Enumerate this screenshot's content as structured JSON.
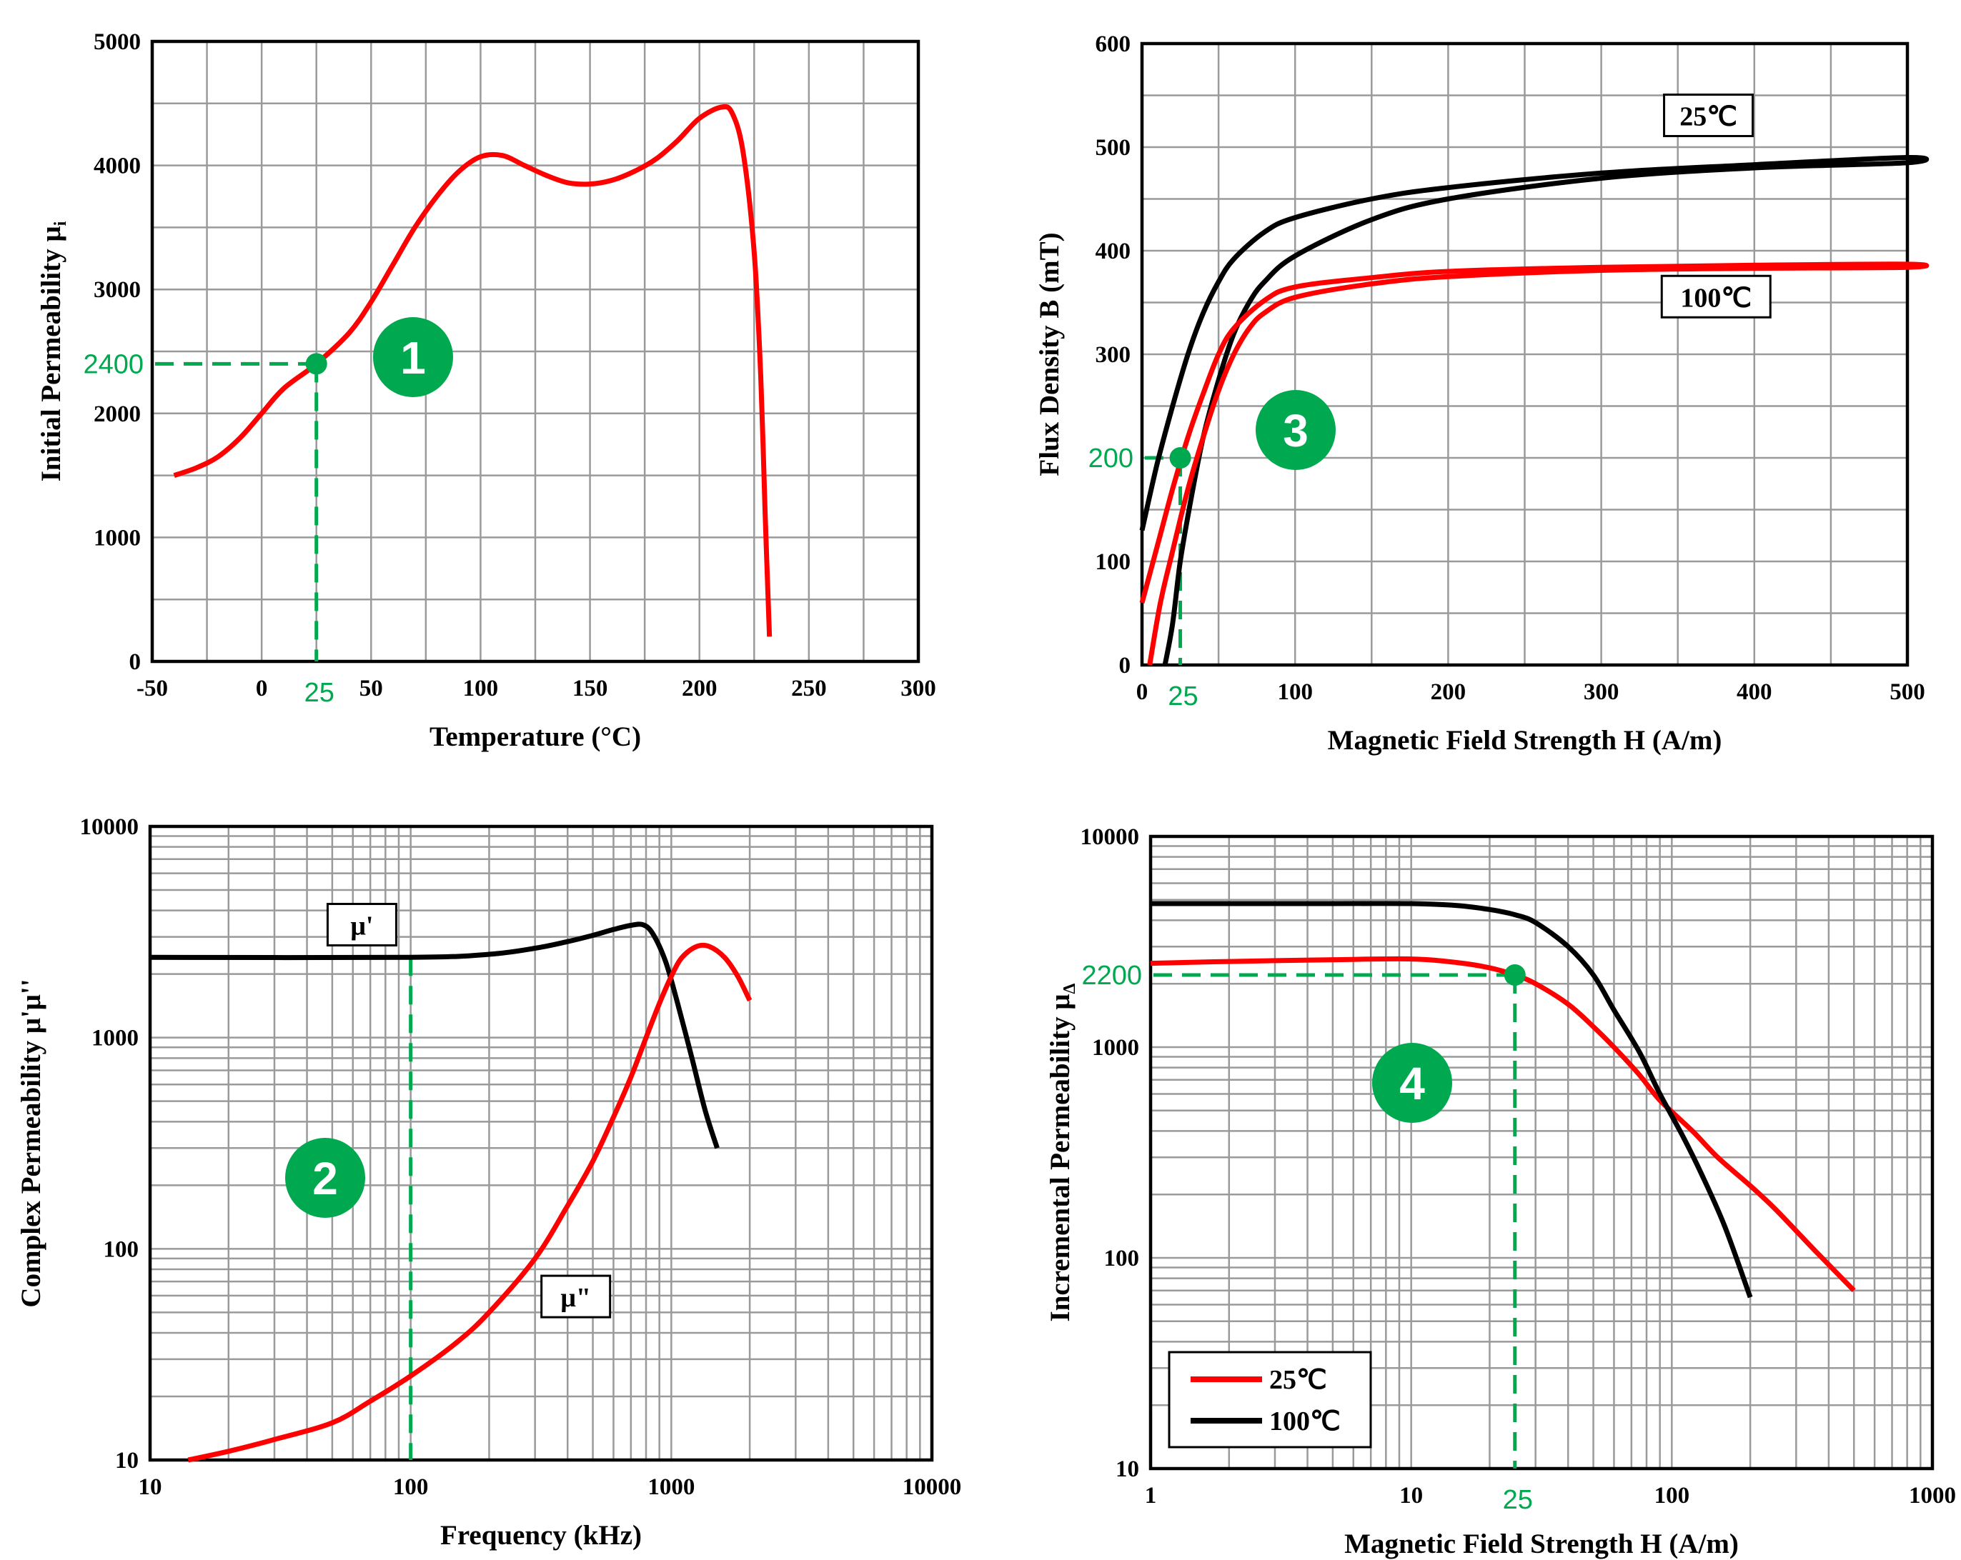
{
  "colors": {
    "annotation": "#00A84F",
    "red_curve": "#FF0000",
    "black_curve": "#000000",
    "grid": "#9a9a9a"
  },
  "chart_data": [
    {
      "type": "line",
      "marker": "1",
      "xlabel": "Temperature (°C)",
      "ylabel": "Initial Permeability μ",
      "ylabel_sub": "i",
      "xscale": "linear",
      "yscale": "linear",
      "xlim": [
        -50,
        300
      ],
      "ylim": [
        0,
        5000
      ],
      "xticks": [
        -50,
        0,
        50,
        100,
        150,
        200,
        250,
        300
      ],
      "yticks": [
        0,
        1000,
        2000,
        3000,
        4000,
        5000
      ],
      "xgrid_step": 25,
      "ygrid_step": 500,
      "grid": true,
      "series": [
        {
          "color": "#FF0000",
          "points": [
            [
              -40,
              1500
            ],
            [
              -30,
              1560
            ],
            [
              -20,
              1650
            ],
            [
              -10,
              1800
            ],
            [
              0,
              2000
            ],
            [
              10,
              2200
            ],
            [
              25,
              2400
            ],
            [
              40,
              2650
            ],
            [
              50,
              2900
            ],
            [
              60,
              3200
            ],
            [
              70,
              3500
            ],
            [
              80,
              3750
            ],
            [
              90,
              3950
            ],
            [
              100,
              4070
            ],
            [
              110,
              4080
            ],
            [
              120,
              4000
            ],
            [
              130,
              3920
            ],
            [
              140,
              3860
            ],
            [
              150,
              3850
            ],
            [
              160,
              3880
            ],
            [
              170,
              3950
            ],
            [
              180,
              4050
            ],
            [
              190,
              4200
            ],
            [
              200,
              4380
            ],
            [
              210,
              4470
            ],
            [
              215,
              4420
            ],
            [
              220,
              4100
            ],
            [
              225,
              3300
            ],
            [
              228,
              2300
            ],
            [
              230,
              1200
            ],
            [
              232,
              200
            ]
          ]
        }
      ],
      "annotation": {
        "x": 25,
        "y": 2400,
        "x_label": "25",
        "y_label": "2400",
        "h_line": true,
        "v_line": true,
        "dot": true
      }
    },
    {
      "type": "line",
      "marker": "2",
      "xlabel": "Frequency (kHz)",
      "ylabel": "Complex Permeability μ'μ''",
      "ylabel_sub": "",
      "xscale": "log",
      "yscale": "log",
      "xlim": [
        10,
        10000
      ],
      "ylim": [
        10,
        10000
      ],
      "xticks": [
        10,
        100,
        1000,
        10000
      ],
      "yticks": [
        10,
        100,
        1000,
        10000
      ],
      "grid": true,
      "series": [
        {
          "name": "μ'",
          "color": "#000000",
          "points": [
            [
              10,
              2400
            ],
            [
              100,
              2400
            ],
            [
              200,
              2480
            ],
            [
              300,
              2650
            ],
            [
              400,
              2850
            ],
            [
              500,
              3050
            ],
            [
              600,
              3250
            ],
            [
              700,
              3400
            ],
            [
              780,
              3420
            ],
            [
              850,
              3100
            ],
            [
              950,
              2300
            ],
            [
              1050,
              1500
            ],
            [
              1200,
              800
            ],
            [
              1350,
              450
            ],
            [
              1500,
              300
            ]
          ]
        },
        {
          "name": "μ\"",
          "color": "#FF0000",
          "points": [
            [
              14,
              10
            ],
            [
              20,
              11
            ],
            [
              30,
              12.5
            ],
            [
              50,
              15
            ],
            [
              70,
              19
            ],
            [
              100,
              25
            ],
            [
              150,
              36
            ],
            [
              200,
              50
            ],
            [
              300,
              90
            ],
            [
              400,
              160
            ],
            [
              500,
              260
            ],
            [
              600,
              420
            ],
            [
              700,
              650
            ],
            [
              800,
              1000
            ],
            [
              900,
              1450
            ],
            [
              1000,
              1950
            ],
            [
              1100,
              2400
            ],
            [
              1250,
              2700
            ],
            [
              1400,
              2700
            ],
            [
              1600,
              2400
            ],
            [
              1800,
              1950
            ],
            [
              2000,
              1500
            ]
          ]
        }
      ],
      "annotation": {
        "x": 100,
        "y": 2400,
        "x_label": "",
        "y_label": "",
        "h_line": false,
        "v_line": true,
        "dot": false
      }
    },
    {
      "type": "line",
      "marker": "3",
      "xlabel": "Magnetic Field Strength H (A/m)",
      "ylabel": "Flux Density B (mT)",
      "ylabel_sub": "",
      "xscale": "linear",
      "yscale": "linear",
      "xlim": [
        0,
        500
      ],
      "ylim": [
        0,
        600
      ],
      "xticks": [
        0,
        100,
        200,
        300,
        400,
        500
      ],
      "yticks": [
        0,
        100,
        200,
        300,
        400,
        500,
        600
      ],
      "xgrid_step": 50,
      "ygrid_step": 50,
      "grid": true,
      "series": [
        {
          "name": "25℃",
          "color": "#000000",
          "points": [
            [
              15,
              0
            ],
            [
              20,
              40
            ],
            [
              25,
              100
            ],
            [
              32,
              160
            ],
            [
              40,
              220
            ],
            [
              50,
              275
            ],
            [
              60,
              320
            ],
            [
              70,
              350
            ],
            [
              80,
              370
            ],
            [
              100,
              395
            ],
            [
              150,
              430
            ],
            [
              200,
              450
            ],
            [
              300,
              470
            ],
            [
              400,
              480
            ],
            [
              500,
              485
            ],
            [
              500,
              490
            ],
            [
              400,
              483
            ],
            [
              300,
              475
            ],
            [
              200,
              461
            ],
            [
              150,
              450
            ],
            [
              100,
              432
            ],
            [
              80,
              418
            ],
            [
              60,
              392
            ],
            [
              50,
              370
            ],
            [
              40,
              340
            ],
            [
              30,
              300
            ],
            [
              20,
              250
            ],
            [
              10,
              195
            ],
            [
              0,
              130
            ]
          ]
        },
        {
          "name": "100℃",
          "color": "#FF0000",
          "points": [
            [
              5,
              0
            ],
            [
              12,
              60
            ],
            [
              20,
              110
            ],
            [
              30,
              170
            ],
            [
              40,
              220
            ],
            [
              50,
              265
            ],
            [
              60,
              300
            ],
            [
              70,
              325
            ],
            [
              80,
              340
            ],
            [
              100,
              355
            ],
            [
              150,
              368
            ],
            [
              200,
              375
            ],
            [
              300,
              381
            ],
            [
              400,
              383
            ],
            [
              500,
              384
            ],
            [
              500,
              387
            ],
            [
              400,
              386
            ],
            [
              300,
              384
            ],
            [
              200,
              380
            ],
            [
              150,
              374
            ],
            [
              100,
              365
            ],
            [
              80,
              352
            ],
            [
              60,
              325
            ],
            [
              50,
              300
            ],
            [
              40,
              262
            ],
            [
              30,
              220
            ],
            [
              20,
              170
            ],
            [
              10,
              115
            ],
            [
              0,
              60
            ]
          ]
        }
      ],
      "annotation": {
        "x": 25,
        "y": 200,
        "x_label": "25",
        "y_label": "200",
        "h_line": true,
        "v_line": true,
        "dot": true
      }
    },
    {
      "type": "line",
      "marker": "4",
      "xlabel": "Magnetic Field Strength H (A/m)",
      "ylabel": "Incremental Permeability μ",
      "ylabel_sub": "Δ",
      "xscale": "log",
      "yscale": "log",
      "xlim": [
        1,
        1000
      ],
      "ylim": [
        10,
        10000
      ],
      "xticks": [
        1,
        10,
        100,
        1000
      ],
      "yticks": [
        10,
        100,
        1000,
        10000
      ],
      "grid": true,
      "legend": "bottom-left",
      "series": [
        {
          "name": "25℃",
          "color": "#FF0000",
          "points": [
            [
              1,
              2500
            ],
            [
              2,
              2550
            ],
            [
              5,
              2600
            ],
            [
              10,
              2620
            ],
            [
              15,
              2520
            ],
            [
              20,
              2380
            ],
            [
              25,
              2200
            ],
            [
              30,
              2000
            ],
            [
              40,
              1600
            ],
            [
              50,
              1250
            ],
            [
              60,
              1000
            ],
            [
              75,
              740
            ],
            [
              90,
              560
            ],
            [
              120,
              400
            ],
            [
              150,
              300
            ],
            [
              200,
              220
            ],
            [
              250,
              170
            ],
            [
              350,
              110
            ],
            [
              500,
              70
            ]
          ]
        },
        {
          "name": "100℃",
          "color": "#000000",
          "points": [
            [
              1,
              4800
            ],
            [
              5,
              4800
            ],
            [
              10,
              4800
            ],
            [
              15,
              4700
            ],
            [
              20,
              4500
            ],
            [
              25,
              4250
            ],
            [
              30,
              3900
            ],
            [
              40,
              3000
            ],
            [
              50,
              2200
            ],
            [
              60,
              1500
            ],
            [
              75,
              950
            ],
            [
              90,
              600
            ],
            [
              110,
              380
            ],
            [
              130,
              250
            ],
            [
              160,
              140
            ],
            [
              200,
              65
            ]
          ]
        }
      ],
      "annotation": {
        "x": 25,
        "y": 2200,
        "x_label": "25",
        "y_label": "2200",
        "h_line": true,
        "v_line": true,
        "dot": true
      }
    }
  ]
}
